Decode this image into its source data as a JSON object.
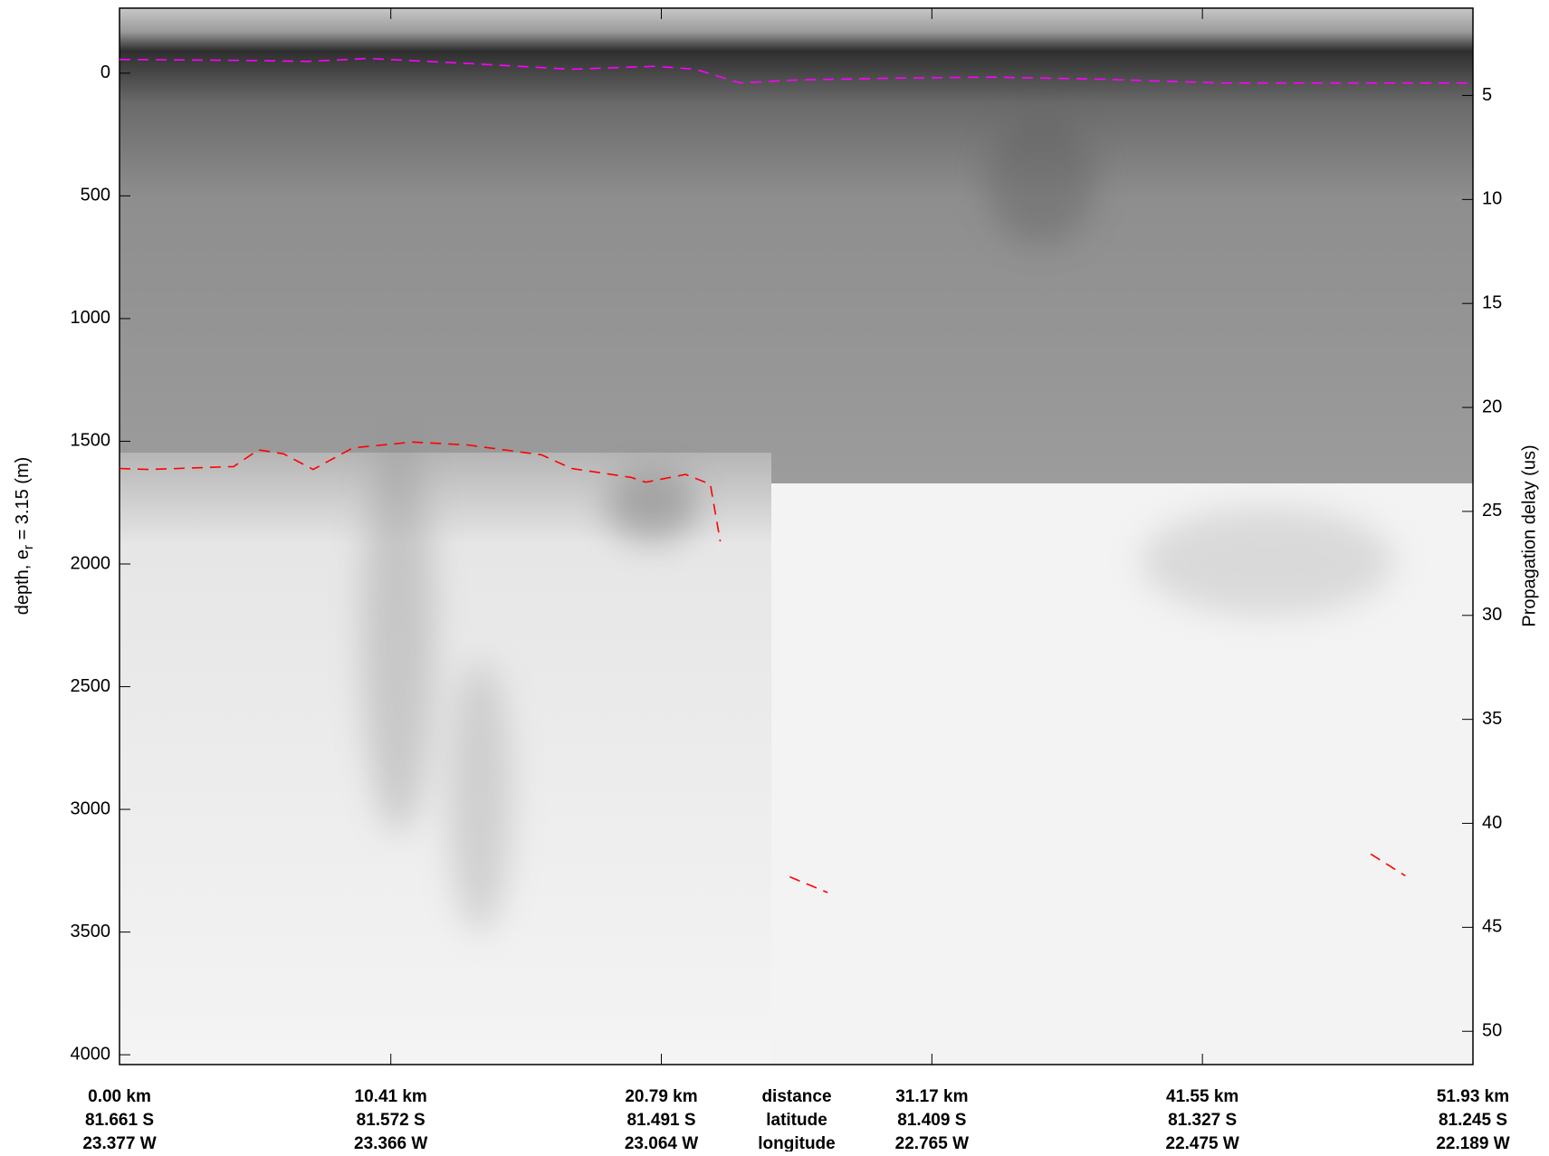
{
  "chart_data": {
    "type": "line",
    "ylabel": [
      "depth, e",
      "r",
      " = 3.15 (m)"
    ],
    "y2label": "Propagation delay (us)",
    "xlim": [
      0,
      51.93
    ],
    "xticks": [
      {
        "value": 0,
        "label": "0.00 km"
      },
      {
        "value": 10.41,
        "label": "10.41 km"
      },
      {
        "value": 20.79,
        "label": "20.79 km"
      },
      {
        "value": 31.17,
        "label": "31.17 km"
      },
      {
        "value": 41.55,
        "label": "41.55 km"
      },
      {
        "value": 51.93,
        "label": "51.93 km"
      }
    ],
    "latitude_labels": [
      "81.661 S",
      "81.572 S",
      "81.491 S",
      "81.409 S",
      "81.327 S",
      "81.245 S"
    ],
    "longitude_labels": [
      "23.377 W",
      "23.366 W",
      "23.064 W",
      "22.765 W",
      "22.475 W",
      "22.189 W"
    ],
    "row_titles": [
      "distance",
      "latitude",
      "longitude"
    ],
    "ylim": [
      -265,
      4040
    ],
    "y_inverted": true,
    "yticks": [
      0,
      500,
      1000,
      1500,
      2000,
      2500,
      3000,
      3500,
      4000
    ],
    "y2lim": [
      0.8,
      51.6
    ],
    "y2ticks": [
      5,
      10,
      15,
      20,
      25,
      30,
      35,
      40,
      45,
      50
    ],
    "series": [
      {
        "color": "#ff00ff",
        "x": [
          0,
          4.57,
          7.24,
          9.53,
          13.34,
          17.34,
          20.57,
          22.1,
          23.81,
          25.91,
          29.72,
          33.53,
          37.34,
          42.29,
          51.93
        ],
        "values": [
          -56,
          -52,
          -48,
          -60,
          -40,
          -16,
          -28,
          -16,
          40,
          28,
          20,
          16,
          24,
          40,
          40
        ]
      },
      {
        "color": "#ff0000",
        "x": [
          0,
          1.14,
          4.38,
          5.33,
          6.29,
          7.43,
          8.95,
          11.24,
          13.34,
          16.19,
          17.34,
          19.62,
          20.19,
          21.72,
          22.67,
          23.05
        ],
        "values": [
          1611,
          1615,
          1603,
          1535,
          1551,
          1615,
          1527,
          1503,
          1515,
          1555,
          1611,
          1647,
          1667,
          1635,
          1675,
          1908
        ]
      },
      {
        "color": "#ff0000",
        "x": [
          25.72,
          27.17
        ],
        "values": [
          3275,
          3339
        ]
      },
      {
        "color": "#ff0000",
        "x": [
          48.01,
          49.34
        ],
        "values": [
          3182,
          3271
        ]
      }
    ]
  }
}
